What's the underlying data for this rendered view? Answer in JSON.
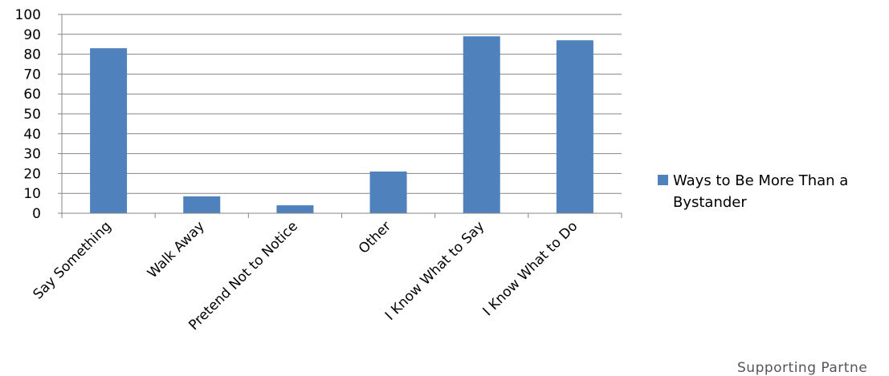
{
  "chart_data": {
    "type": "bar",
    "categories": [
      "Say Something",
      "Walk Away",
      "Pretend Not to Notice",
      "Other",
      "I Know What to Say",
      "I Know What to Do"
    ],
    "series": [
      {
        "name": "Ways to Be More Than a Bystander",
        "values": [
          83,
          8.5,
          4,
          21,
          89,
          87
        ],
        "color": "#4F81BD"
      }
    ],
    "ylim": [
      0,
      100
    ],
    "yticks": [
      0,
      10,
      20,
      30,
      40,
      50,
      60,
      70,
      80,
      90,
      100
    ],
    "grid": true,
    "legend_position": "right"
  },
  "footer_text": "Supporting Partne"
}
